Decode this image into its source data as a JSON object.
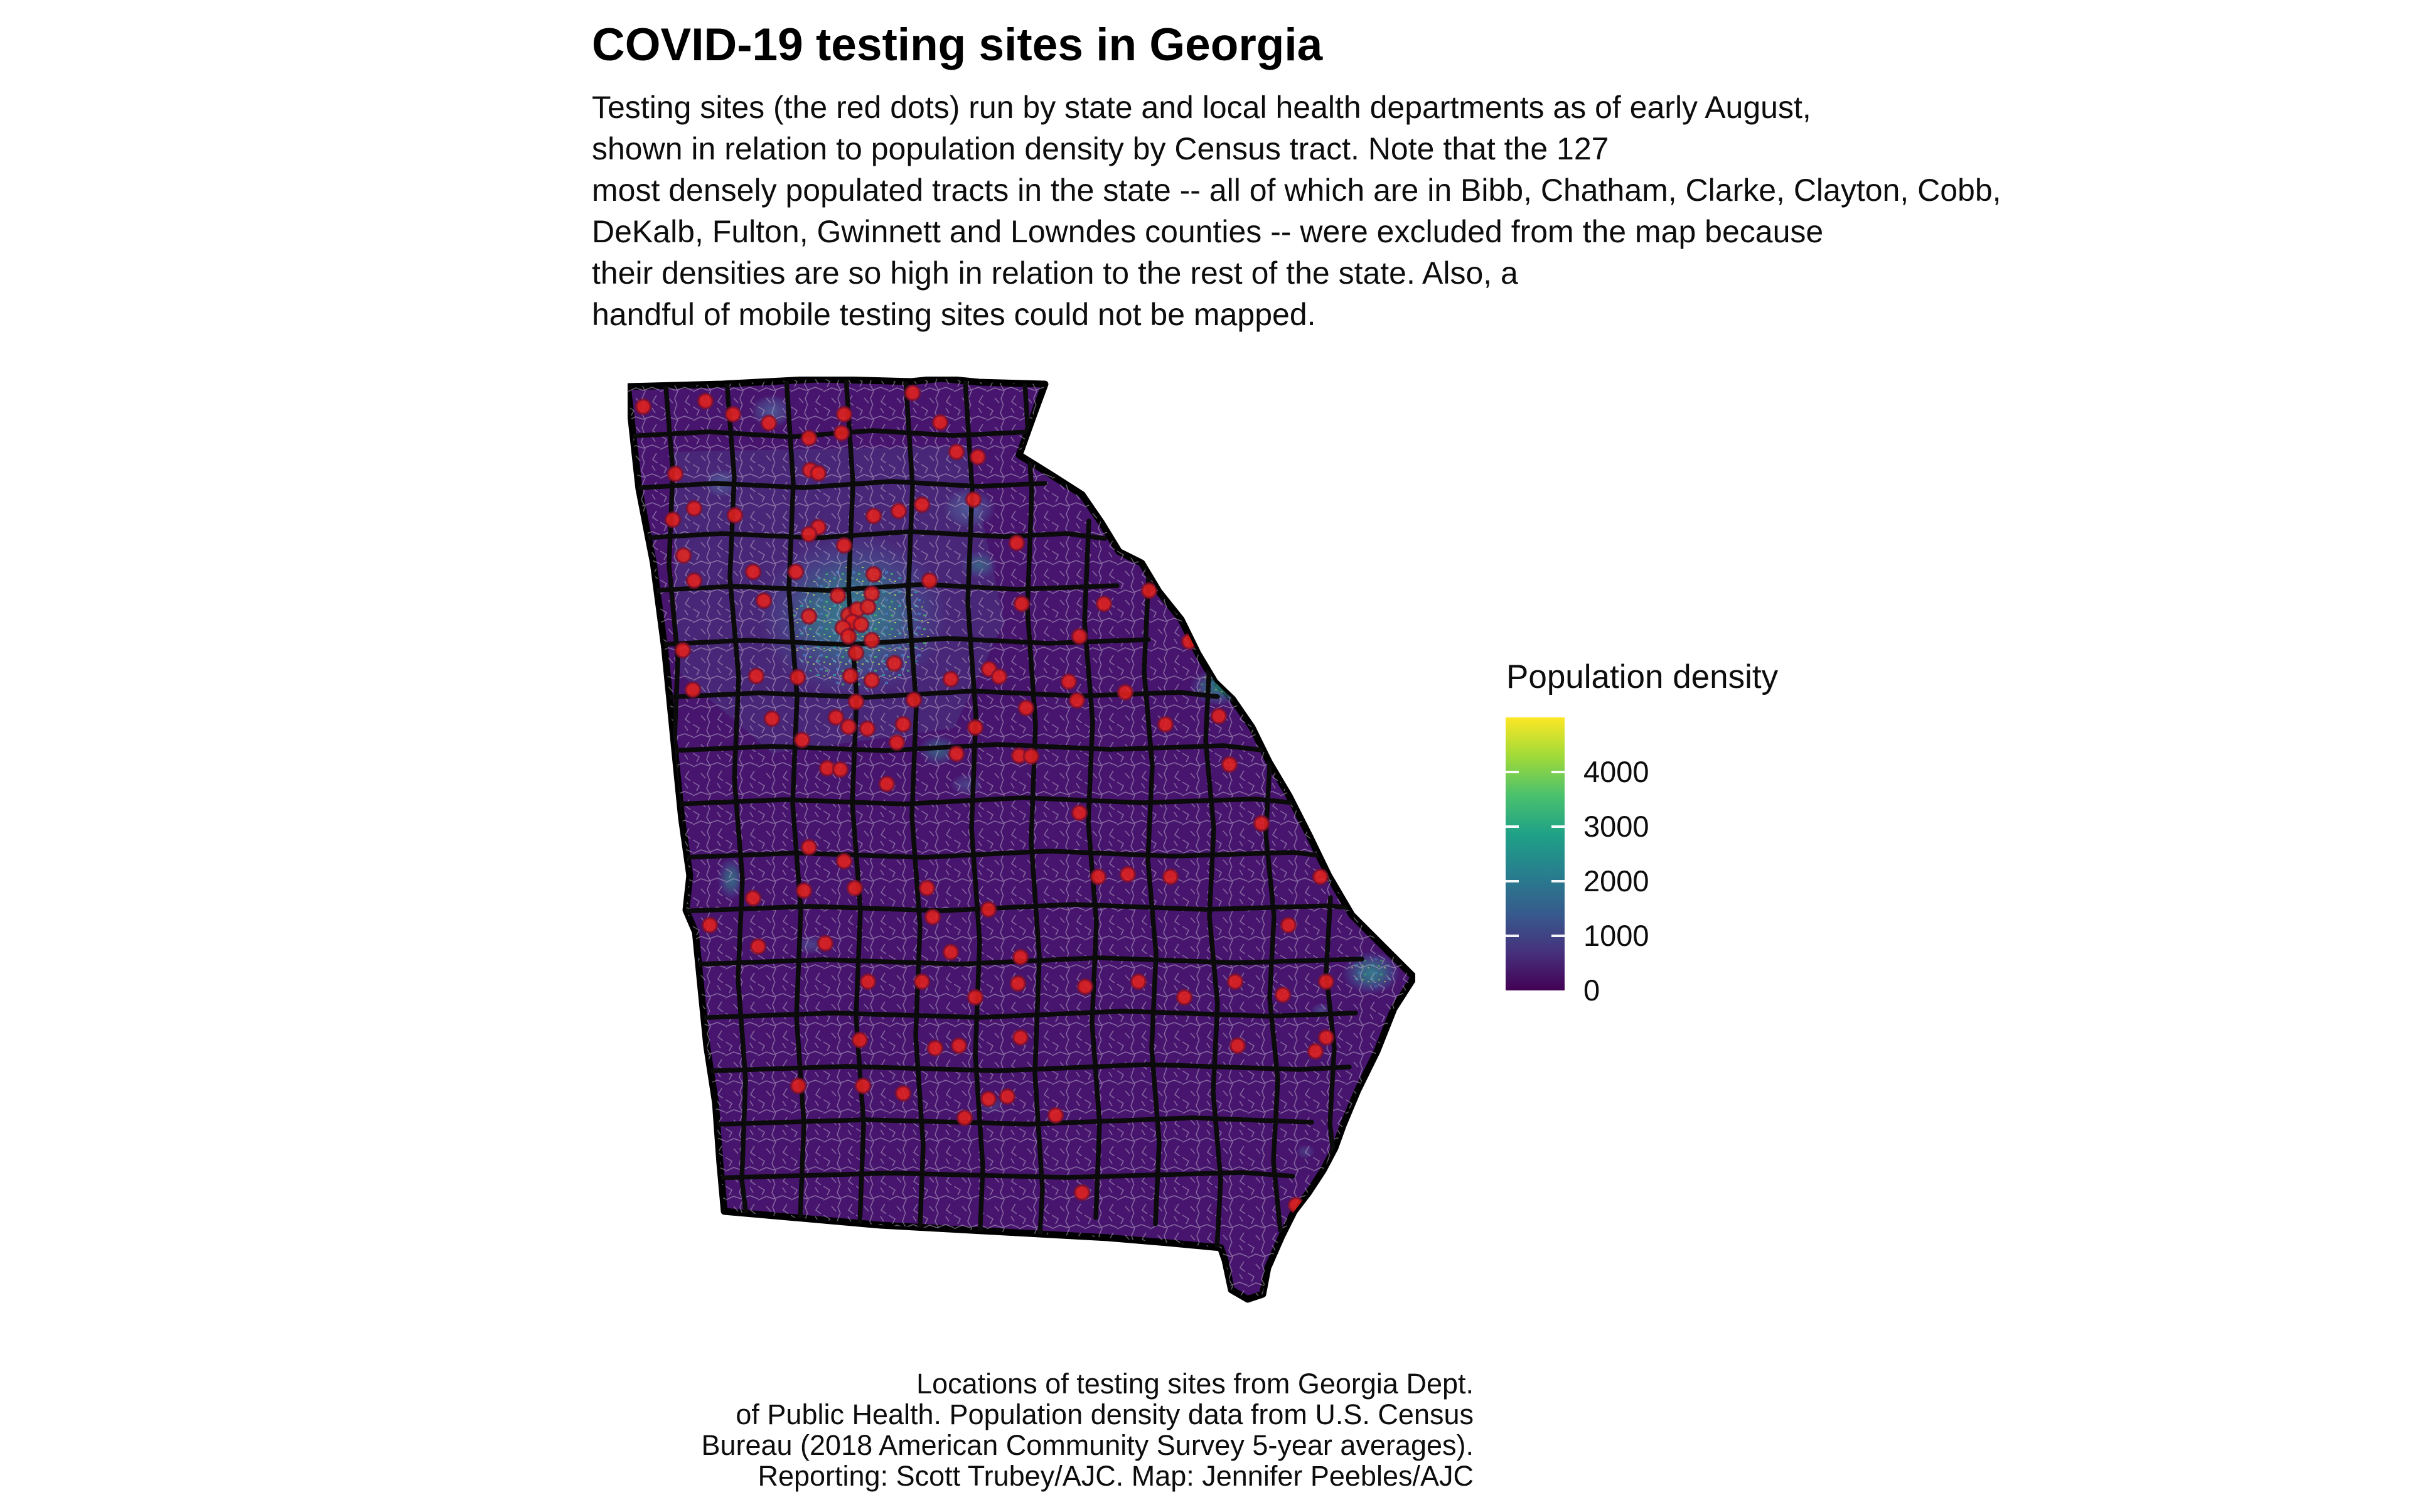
{
  "page": {
    "background_color": "#ffffff"
  },
  "header": {
    "title": "COVID-19 testing sites in Georgia",
    "subtitle_lines": [
      "Testing sites (the red dots) run by state and local health departments as of early August,",
      "shown in relation to population density by Census tract. Note that the 127",
      "most densely populated tracts in the state -- all of which are in Bibb, Chatham, Clarke, Clayton, Cobb,",
      "DeKalb, Fulton, Gwinnett and Lowndes counties -- were excluded from the map because",
      "their densities are so high in relation to the rest of the state. Also, a",
      "handful of mobile testing sites could not be mapped."
    ]
  },
  "legend": {
    "title": "Population density",
    "scale_max": 5000,
    "ticks": [
      {
        "label": "4000",
        "value": 4000
      },
      {
        "label": "3000",
        "value": 3000
      },
      {
        "label": "2000",
        "value": 2000
      },
      {
        "label": "1000",
        "value": 1000
      },
      {
        "label": "0",
        "value": 0
      }
    ],
    "gradient_stops_bottom_to_top": [
      "#440154",
      "#46327e",
      "#365c8d",
      "#277f8e",
      "#1fa187",
      "#4ac16d",
      "#a0da39",
      "#fde725"
    ]
  },
  "map": {
    "region": "Georgia",
    "marker_meaning": "testing site",
    "marker_color": "#e3211e",
    "marker_edge_color": "#7d0f2e",
    "marker_radius": 11.5,
    "base_tract_fill": "#47156e",
    "county_line_color": "#0b0b0b",
    "tract_line_color": "#b7a8c6",
    "testing_sites": [
      [
        25,
        48
      ],
      [
        124,
        39
      ],
      [
        168,
        60
      ],
      [
        225,
        74
      ],
      [
        289,
        98
      ],
      [
        345,
        60
      ],
      [
        454,
        26
      ],
      [
        498,
        73
      ],
      [
        558,
        128
      ],
      [
        551,
        196
      ],
      [
        524,
        120
      ],
      [
        620,
        265
      ],
      [
        291,
        149
      ],
      [
        341,
        90
      ],
      [
        304,
        154
      ],
      [
        304,
        240
      ],
      [
        432,
        214
      ],
      [
        481,
        325
      ],
      [
        76,
        155
      ],
      [
        106,
        210
      ],
      [
        72,
        228
      ],
      [
        171,
        221
      ],
      [
        392,
        222
      ],
      [
        469,
        204
      ],
      [
        89,
        285
      ],
      [
        200,
        311
      ],
      [
        268,
        311
      ],
      [
        289,
        251
      ],
      [
        345,
        269
      ],
      [
        392,
        315
      ],
      [
        88,
        436
      ],
      [
        104,
        499
      ],
      [
        205,
        477
      ],
      [
        271,
        479
      ],
      [
        230,
        545
      ],
      [
        106,
        325
      ],
      [
        217,
        357
      ],
      [
        289,
        382
      ],
      [
        389,
        346
      ],
      [
        628,
        362
      ],
      [
        576,
        466
      ],
      [
        624,
        604
      ],
      [
        335,
        349
      ],
      [
        352,
        380
      ],
      [
        366,
        371
      ],
      [
        383,
        367
      ],
      [
        358,
        391
      ],
      [
        343,
        400
      ],
      [
        372,
        395
      ],
      [
        352,
        414
      ],
      [
        389,
        420
      ],
      [
        364,
        440
      ],
      [
        355,
        477
      ],
      [
        389,
        484
      ],
      [
        425,
        457
      ],
      [
        364,
        518
      ],
      [
        332,
        543
      ],
      [
        352,
        558
      ],
      [
        382,
        561
      ],
      [
        456,
        515
      ],
      [
        429,
        583
      ],
      [
        413,
        649
      ],
      [
        318,
        624
      ],
      [
        339,
        626
      ],
      [
        278,
        579
      ],
      [
        515,
        482
      ],
      [
        592,
        478
      ],
      [
        703,
        486
      ],
      [
        759,
        362
      ],
      [
        720,
        414
      ],
      [
        831,
        341
      ],
      [
        895,
        422
      ],
      [
        942,
        435
      ],
      [
        951,
        444
      ],
      [
        793,
        503
      ],
      [
        857,
        554
      ],
      [
        942,
        541
      ],
      [
        716,
        516
      ],
      [
        635,
        528
      ],
      [
        439,
        554
      ],
      [
        554,
        559
      ],
      [
        524,
        601
      ],
      [
        643,
        605
      ],
      [
        720,
        695
      ],
      [
        750,
        797
      ],
      [
        797,
        793
      ],
      [
        865,
        797
      ],
      [
        959,
        618
      ],
      [
        1053,
        631
      ],
      [
        1130,
        716
      ],
      [
        1010,
        712
      ],
      [
        1104,
        797
      ],
      [
        1198,
        823
      ],
      [
        1053,
        874
      ],
      [
        1113,
        964
      ],
      [
        1096,
        1075
      ],
      [
        477,
        815
      ],
      [
        575,
        849
      ],
      [
        486,
        861
      ],
      [
        515,
        917
      ],
      [
        626,
        925
      ],
      [
        622,
        967
      ],
      [
        554,
        989
      ],
      [
        200,
        831
      ],
      [
        289,
        750
      ],
      [
        345,
        772
      ],
      [
        281,
        819
      ],
      [
        362,
        815
      ],
      [
        131,
        874
      ],
      [
        208,
        908
      ],
      [
        315,
        903
      ],
      [
        383,
        964
      ],
      [
        469,
        964
      ],
      [
        528,
        1066
      ],
      [
        575,
        1151
      ],
      [
        490,
        1070
      ],
      [
        370,
        1057
      ],
      [
        272,
        1130
      ],
      [
        375,
        1130
      ],
      [
        439,
        1142
      ],
      [
        537,
        1181
      ],
      [
        605,
        1147
      ],
      [
        682,
        1177
      ],
      [
        729,
        972
      ],
      [
        814,
        964
      ],
      [
        887,
        989
      ],
      [
        968,
        964
      ],
      [
        1044,
        985
      ],
      [
        1113,
        1053
      ],
      [
        972,
        1066
      ],
      [
        626,
        1053
      ],
      [
        724,
        1300
      ],
      [
        1065,
        1320
      ]
    ]
  },
  "caption": {
    "lines": [
      "Locations of testing sites from Georgia Dept.",
      "of Public Health. Population density data from U.S. Census",
      "Bureau (2018 American Community Survey 5-year averages).",
      "Reporting: Scott Trubey/AJC. Map: Jennifer Peebles/AJC"
    ]
  }
}
